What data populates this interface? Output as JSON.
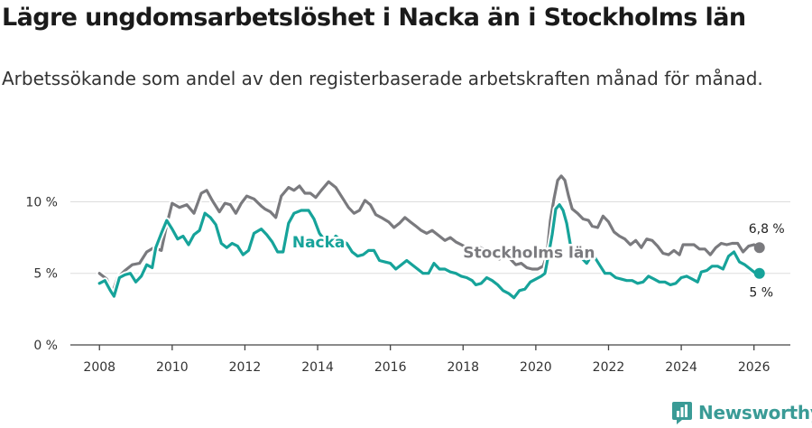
{
  "title": "Lägre ungdomsarbetslöshet i Nacka än i Stockholms län",
  "subtitle": "Arbetssökande som andel av den registerbaserade arbetskraften månad för månad.",
  "logo": {
    "text": "Newsworthy",
    "icon": "bar-chart-icon"
  },
  "colors": {
    "nacka": "#16a39a",
    "stockholm": "#7a7a7e",
    "grid": "#dddddd",
    "axis": "#444444",
    "halo": "#ffffff"
  },
  "chart_data": {
    "type": "line",
    "title": "Lägre ungdomsarbetslöshet i Nacka än i Stockholms län",
    "ylabel": "",
    "xlabel": "",
    "ylim": [
      0,
      13.5
    ],
    "xlim": [
      2007.2,
      2027.0
    ],
    "yticks": [
      0,
      5,
      10
    ],
    "ytick_labels": [
      "0 %",
      "5 %",
      "10 %"
    ],
    "xticks": [
      2008,
      2010,
      2012,
      2014,
      2016,
      2018,
      2020,
      2022,
      2024,
      2026
    ],
    "xtick_labels": [
      "2008",
      "2010",
      "2012",
      "2014",
      "2016",
      "2018",
      "2020",
      "2022",
      "2024",
      "2026"
    ],
    "series": [
      {
        "name": "Stockholms län",
        "label_text": "Stockholms län",
        "end_label": "6,8 %",
        "points": [
          [
            2008.0,
            5.0
          ],
          [
            2008.2,
            4.6
          ],
          [
            2008.35,
            3.6
          ],
          [
            2008.5,
            4.7
          ],
          [
            2008.7,
            5.2
          ],
          [
            2008.9,
            5.6
          ],
          [
            2009.1,
            5.7
          ],
          [
            2009.3,
            6.5
          ],
          [
            2009.5,
            6.8
          ],
          [
            2009.7,
            6.6
          ],
          [
            2009.85,
            8.4
          ],
          [
            2010.0,
            9.9
          ],
          [
            2010.2,
            9.6
          ],
          [
            2010.4,
            9.8
          ],
          [
            2010.6,
            9.2
          ],
          [
            2010.8,
            10.6
          ],
          [
            2010.95,
            10.8
          ],
          [
            2011.1,
            10.1
          ],
          [
            2011.3,
            9.3
          ],
          [
            2011.45,
            9.9
          ],
          [
            2011.6,
            9.8
          ],
          [
            2011.75,
            9.2
          ],
          [
            2011.9,
            9.9
          ],
          [
            2012.05,
            10.4
          ],
          [
            2012.25,
            10.2
          ],
          [
            2012.45,
            9.7
          ],
          [
            2012.55,
            9.5
          ],
          [
            2012.7,
            9.3
          ],
          [
            2012.85,
            8.9
          ],
          [
            2013.0,
            10.4
          ],
          [
            2013.2,
            11.0
          ],
          [
            2013.35,
            10.8
          ],
          [
            2013.5,
            11.1
          ],
          [
            2013.65,
            10.6
          ],
          [
            2013.8,
            10.6
          ],
          [
            2013.95,
            10.3
          ],
          [
            2014.1,
            10.8
          ],
          [
            2014.3,
            11.4
          ],
          [
            2014.5,
            11.0
          ],
          [
            2014.7,
            10.2
          ],
          [
            2014.85,
            9.6
          ],
          [
            2015.0,
            9.2
          ],
          [
            2015.15,
            9.4
          ],
          [
            2015.3,
            10.1
          ],
          [
            2015.45,
            9.8
          ],
          [
            2015.6,
            9.1
          ],
          [
            2015.75,
            8.9
          ],
          [
            2015.95,
            8.6
          ],
          [
            2016.1,
            8.2
          ],
          [
            2016.25,
            8.5
          ],
          [
            2016.4,
            8.9
          ],
          [
            2016.55,
            8.6
          ],
          [
            2016.7,
            8.3
          ],
          [
            2016.85,
            8.0
          ],
          [
            2017.0,
            7.8
          ],
          [
            2017.15,
            8.0
          ],
          [
            2017.35,
            7.6
          ],
          [
            2017.5,
            7.3
          ],
          [
            2017.65,
            7.5
          ],
          [
            2017.8,
            7.2
          ],
          [
            2017.95,
            7.0
          ],
          [
            2018.1,
            6.8
          ],
          [
            2018.25,
            6.6
          ],
          [
            2018.4,
            6.9
          ],
          [
            2018.55,
            6.7
          ],
          [
            2018.7,
            6.5
          ],
          [
            2018.85,
            6.2
          ],
          [
            2019.0,
            6.0
          ],
          [
            2019.15,
            6.4
          ],
          [
            2019.3,
            6.0
          ],
          [
            2019.45,
            5.6
          ],
          [
            2019.6,
            5.7
          ],
          [
            2019.75,
            5.4
          ],
          [
            2019.9,
            5.3
          ],
          [
            2020.05,
            5.3
          ],
          [
            2020.2,
            5.5
          ],
          [
            2020.3,
            6.2
          ],
          [
            2020.4,
            8.7
          ],
          [
            2020.5,
            10.2
          ],
          [
            2020.6,
            11.5
          ],
          [
            2020.7,
            11.8
          ],
          [
            2020.8,
            11.5
          ],
          [
            2020.9,
            10.4
          ],
          [
            2021.0,
            9.5
          ],
          [
            2021.15,
            9.2
          ],
          [
            2021.3,
            8.8
          ],
          [
            2021.45,
            8.7
          ],
          [
            2021.55,
            8.3
          ],
          [
            2021.7,
            8.2
          ],
          [
            2021.85,
            9.0
          ],
          [
            2022.0,
            8.6
          ],
          [
            2022.15,
            7.9
          ],
          [
            2022.3,
            7.6
          ],
          [
            2022.45,
            7.4
          ],
          [
            2022.6,
            7.0
          ],
          [
            2022.75,
            7.3
          ],
          [
            2022.9,
            6.8
          ],
          [
            2023.05,
            7.4
          ],
          [
            2023.2,
            7.3
          ],
          [
            2023.35,
            6.9
          ],
          [
            2023.5,
            6.4
          ],
          [
            2023.65,
            6.3
          ],
          [
            2023.8,
            6.6
          ],
          [
            2023.95,
            6.3
          ],
          [
            2024.05,
            7.0
          ],
          [
            2024.2,
            7.0
          ],
          [
            2024.35,
            7.0
          ],
          [
            2024.5,
            6.7
          ],
          [
            2024.65,
            6.7
          ],
          [
            2024.8,
            6.3
          ],
          [
            2024.95,
            6.8
          ],
          [
            2025.1,
            7.1
          ],
          [
            2025.25,
            7.0
          ],
          [
            2025.4,
            7.1
          ],
          [
            2025.55,
            7.1
          ],
          [
            2025.7,
            6.5
          ],
          [
            2025.85,
            6.9
          ],
          [
            2026.0,
            7.0
          ],
          [
            2026.15,
            6.8
          ]
        ]
      },
      {
        "name": "Nacka",
        "label_text": "Nacka",
        "end_label": "5 %",
        "points": [
          [
            2008.0,
            4.3
          ],
          [
            2008.15,
            4.5
          ],
          [
            2008.3,
            3.8
          ],
          [
            2008.4,
            3.4
          ],
          [
            2008.55,
            4.7
          ],
          [
            2008.7,
            4.9
          ],
          [
            2008.85,
            5.0
          ],
          [
            2009.0,
            4.4
          ],
          [
            2009.15,
            4.8
          ],
          [
            2009.3,
            5.6
          ],
          [
            2009.45,
            5.4
          ],
          [
            2009.55,
            6.8
          ],
          [
            2009.7,
            7.8
          ],
          [
            2009.85,
            8.7
          ],
          [
            2010.0,
            8.1
          ],
          [
            2010.15,
            7.4
          ],
          [
            2010.3,
            7.6
          ],
          [
            2010.45,
            7.0
          ],
          [
            2010.6,
            7.7
          ],
          [
            2010.75,
            8.0
          ],
          [
            2010.9,
            9.2
          ],
          [
            2011.05,
            8.9
          ],
          [
            2011.2,
            8.4
          ],
          [
            2011.35,
            7.1
          ],
          [
            2011.5,
            6.8
          ],
          [
            2011.65,
            7.1
          ],
          [
            2011.8,
            6.9
          ],
          [
            2011.95,
            6.3
          ],
          [
            2012.1,
            6.6
          ],
          [
            2012.25,
            7.8
          ],
          [
            2012.45,
            8.1
          ],
          [
            2012.6,
            7.7
          ],
          [
            2012.75,
            7.2
          ],
          [
            2012.9,
            6.5
          ],
          [
            2013.05,
            6.5
          ],
          [
            2013.2,
            8.5
          ],
          [
            2013.35,
            9.2
          ],
          [
            2013.55,
            9.4
          ],
          [
            2013.75,
            9.4
          ],
          [
            2013.9,
            8.8
          ],
          [
            2014.05,
            7.8
          ],
          [
            2014.2,
            7.3
          ],
          [
            2014.35,
            7.1
          ],
          [
            2014.5,
            7.6
          ],
          [
            2014.65,
            7.3
          ],
          [
            2014.8,
            7.1
          ],
          [
            2014.95,
            6.5
          ],
          [
            2015.1,
            6.2
          ],
          [
            2015.25,
            6.3
          ],
          [
            2015.4,
            6.6
          ],
          [
            2015.55,
            6.6
          ],
          [
            2015.7,
            5.9
          ],
          [
            2015.85,
            5.8
          ],
          [
            2016.0,
            5.7
          ],
          [
            2016.15,
            5.3
          ],
          [
            2016.3,
            5.6
          ],
          [
            2016.45,
            5.9
          ],
          [
            2016.6,
            5.6
          ],
          [
            2016.75,
            5.3
          ],
          [
            2016.9,
            5.0
          ],
          [
            2017.05,
            5.0
          ],
          [
            2017.2,
            5.7
          ],
          [
            2017.35,
            5.3
          ],
          [
            2017.5,
            5.3
          ],
          [
            2017.65,
            5.1
          ],
          [
            2017.8,
            5.0
          ],
          [
            2017.95,
            4.8
          ],
          [
            2018.1,
            4.7
          ],
          [
            2018.25,
            4.5
          ],
          [
            2018.35,
            4.2
          ],
          [
            2018.5,
            4.3
          ],
          [
            2018.65,
            4.7
          ],
          [
            2018.8,
            4.5
          ],
          [
            2018.95,
            4.2
          ],
          [
            2019.1,
            3.8
          ],
          [
            2019.25,
            3.6
          ],
          [
            2019.4,
            3.3
          ],
          [
            2019.55,
            3.8
          ],
          [
            2019.7,
            3.9
          ],
          [
            2019.85,
            4.4
          ],
          [
            2020.0,
            4.6
          ],
          [
            2020.15,
            4.8
          ],
          [
            2020.25,
            5.0
          ],
          [
            2020.35,
            6.3
          ],
          [
            2020.45,
            7.7
          ],
          [
            2020.55,
            9.5
          ],
          [
            2020.65,
            9.8
          ],
          [
            2020.75,
            9.4
          ],
          [
            2020.85,
            8.5
          ],
          [
            2020.95,
            7.0
          ],
          [
            2021.1,
            6.4
          ],
          [
            2021.25,
            6.1
          ],
          [
            2021.4,
            5.7
          ],
          [
            2021.5,
            6.1
          ],
          [
            2021.6,
            6.2
          ],
          [
            2021.75,
            5.6
          ],
          [
            2021.9,
            5.0
          ],
          [
            2022.05,
            5.0
          ],
          [
            2022.2,
            4.7
          ],
          [
            2022.35,
            4.6
          ],
          [
            2022.5,
            4.5
          ],
          [
            2022.65,
            4.5
          ],
          [
            2022.8,
            4.3
          ],
          [
            2022.95,
            4.4
          ],
          [
            2023.1,
            4.8
          ],
          [
            2023.25,
            4.6
          ],
          [
            2023.4,
            4.4
          ],
          [
            2023.55,
            4.4
          ],
          [
            2023.7,
            4.2
          ],
          [
            2023.85,
            4.3
          ],
          [
            2024.0,
            4.7
          ],
          [
            2024.15,
            4.8
          ],
          [
            2024.3,
            4.6
          ],
          [
            2024.45,
            4.4
          ],
          [
            2024.55,
            5.1
          ],
          [
            2024.7,
            5.2
          ],
          [
            2024.85,
            5.5
          ],
          [
            2025.0,
            5.5
          ],
          [
            2025.15,
            5.3
          ],
          [
            2025.3,
            6.2
          ],
          [
            2025.45,
            6.5
          ],
          [
            2025.6,
            5.8
          ],
          [
            2025.75,
            5.6
          ],
          [
            2025.9,
            5.3
          ],
          [
            2026.05,
            5.0
          ],
          [
            2026.15,
            5.0
          ]
        ]
      }
    ]
  }
}
